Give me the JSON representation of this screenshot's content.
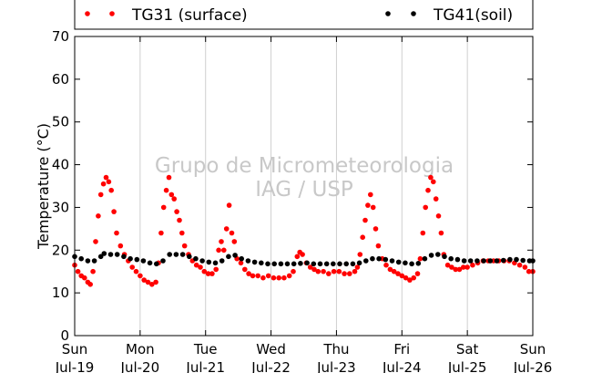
{
  "chart_data": {
    "type": "scatter",
    "ylabel": "Temperature (°C)",
    "xlabel": "",
    "ylim": [
      0,
      70
    ],
    "yticks": [
      0,
      10,
      20,
      30,
      40,
      50,
      60,
      70
    ],
    "xlim": [
      0,
      7
    ],
    "xticks": [
      {
        "x": 0,
        "day": "Sun",
        "date": "Jul-19"
      },
      {
        "x": 1,
        "day": "Mon",
        "date": "Jul-20"
      },
      {
        "x": 2,
        "day": "Tue",
        "date": "Jul-21"
      },
      {
        "x": 3,
        "day": "Wed",
        "date": "Jul-22"
      },
      {
        "x": 4,
        "day": "Thu",
        "date": "Jul-23"
      },
      {
        "x": 5,
        "day": "Fri",
        "date": "Jul-24"
      },
      {
        "x": 6,
        "day": "Sat",
        "date": "Jul-25"
      },
      {
        "x": 7,
        "day": "Sun",
        "date": "Jul-26"
      }
    ],
    "grid": "vertical",
    "legend_position": "top",
    "watermark": [
      "Grupo de Micrometeorologia",
      "IAG / USP"
    ],
    "series": [
      {
        "name": "TG31 (surface)",
        "color": "#ff0000",
        "marker": "dot",
        "points": [
          [
            0.0,
            16.5
          ],
          [
            0.05,
            15.0
          ],
          [
            0.1,
            14.0
          ],
          [
            0.15,
            13.5
          ],
          [
            0.2,
            12.5
          ],
          [
            0.24,
            12.0
          ],
          [
            0.28,
            15.0
          ],
          [
            0.32,
            22.0
          ],
          [
            0.36,
            28.0
          ],
          [
            0.4,
            33.0
          ],
          [
            0.44,
            35.5
          ],
          [
            0.48,
            37.0
          ],
          [
            0.52,
            36.0
          ],
          [
            0.56,
            34.0
          ],
          [
            0.6,
            29.0
          ],
          [
            0.64,
            24.0
          ],
          [
            0.7,
            21.0
          ],
          [
            0.76,
            19.0
          ],
          [
            0.82,
            17.5
          ],
          [
            0.88,
            16.0
          ],
          [
            0.94,
            15.0
          ],
          [
            1.0,
            14.0
          ],
          [
            1.06,
            13.0
          ],
          [
            1.12,
            12.5
          ],
          [
            1.18,
            12.0
          ],
          [
            1.24,
            12.5
          ],
          [
            1.28,
            17.0
          ],
          [
            1.32,
            24.0
          ],
          [
            1.36,
            30.0
          ],
          [
            1.4,
            34.0
          ],
          [
            1.44,
            37.0
          ],
          [
            1.48,
            33.0
          ],
          [
            1.52,
            32.0
          ],
          [
            1.56,
            29.0
          ],
          [
            1.6,
            27.0
          ],
          [
            1.64,
            24.0
          ],
          [
            1.68,
            21.0
          ],
          [
            1.74,
            19.0
          ],
          [
            1.8,
            17.5
          ],
          [
            1.86,
            16.5
          ],
          [
            1.92,
            16.0
          ],
          [
            1.98,
            15.0
          ],
          [
            2.04,
            14.5
          ],
          [
            2.1,
            14.5
          ],
          [
            2.16,
            15.5
          ],
          [
            2.2,
            20.0
          ],
          [
            2.24,
            22.0
          ],
          [
            2.28,
            20.0
          ],
          [
            2.32,
            25.0
          ],
          [
            2.36,
            30.5
          ],
          [
            2.4,
            24.0
          ],
          [
            2.44,
            22.0
          ],
          [
            2.48,
            18.0
          ],
          [
            2.54,
            17.0
          ],
          [
            2.6,
            15.5
          ],
          [
            2.66,
            14.5
          ],
          [
            2.72,
            14.0
          ],
          [
            2.8,
            14.0
          ],
          [
            2.88,
            13.5
          ],
          [
            2.96,
            14.0
          ],
          [
            3.04,
            13.5
          ],
          [
            3.12,
            13.5
          ],
          [
            3.2,
            13.5
          ],
          [
            3.28,
            14.0
          ],
          [
            3.34,
            15.0
          ],
          [
            3.4,
            18.5
          ],
          [
            3.44,
            19.5
          ],
          [
            3.48,
            19.0
          ],
          [
            3.54,
            17.0
          ],
          [
            3.6,
            16.0
          ],
          [
            3.66,
            15.5
          ],
          [
            3.72,
            15.0
          ],
          [
            3.8,
            15.0
          ],
          [
            3.88,
            14.5
          ],
          [
            3.96,
            15.0
          ],
          [
            4.04,
            15.0
          ],
          [
            4.12,
            14.5
          ],
          [
            4.2,
            14.5
          ],
          [
            4.28,
            15.0
          ],
          [
            4.32,
            16.0
          ],
          [
            4.36,
            19.0
          ],
          [
            4.4,
            23.0
          ],
          [
            4.44,
            27.0
          ],
          [
            4.48,
            30.5
          ],
          [
            4.52,
            33.0
          ],
          [
            4.56,
            30.0
          ],
          [
            4.6,
            25.0
          ],
          [
            4.64,
            21.0
          ],
          [
            4.7,
            18.0
          ],
          [
            4.76,
            16.5
          ],
          [
            4.82,
            15.5
          ],
          [
            4.88,
            15.0
          ],
          [
            4.94,
            14.5
          ],
          [
            5.0,
            14.0
          ],
          [
            5.06,
            13.5
          ],
          [
            5.12,
            13.0
          ],
          [
            5.18,
            13.5
          ],
          [
            5.24,
            14.5
          ],
          [
            5.28,
            18.0
          ],
          [
            5.32,
            24.0
          ],
          [
            5.36,
            30.0
          ],
          [
            5.4,
            34.0
          ],
          [
            5.44,
            37.0
          ],
          [
            5.48,
            36.0
          ],
          [
            5.52,
            32.0
          ],
          [
            5.56,
            28.0
          ],
          [
            5.6,
            24.0
          ],
          [
            5.64,
            19.0
          ],
          [
            5.7,
            16.5
          ],
          [
            5.76,
            16.0
          ],
          [
            5.82,
            15.5
          ],
          [
            5.88,
            15.5
          ],
          [
            5.94,
            16.0
          ],
          [
            6.0,
            16.0
          ],
          [
            6.08,
            16.5
          ],
          [
            6.16,
            17.0
          ],
          [
            6.24,
            17.5
          ],
          [
            6.32,
            17.5
          ],
          [
            6.4,
            17.5
          ],
          [
            6.48,
            17.5
          ],
          [
            6.56,
            17.5
          ],
          [
            6.64,
            17.5
          ],
          [
            6.72,
            17.0
          ],
          [
            6.8,
            16.5
          ],
          [
            6.88,
            16.0
          ],
          [
            6.94,
            15.0
          ],
          [
            7.0,
            15.0
          ]
        ]
      },
      {
        "name": "TG41(soil)",
        "color": "#000000",
        "marker": "dot",
        "points": [
          [
            0.0,
            18.5
          ],
          [
            0.1,
            18.0
          ],
          [
            0.2,
            17.5
          ],
          [
            0.3,
            17.5
          ],
          [
            0.4,
            18.5
          ],
          [
            0.45,
            19.2
          ],
          [
            0.55,
            19.0
          ],
          [
            0.65,
            19.0
          ],
          [
            0.75,
            18.5
          ],
          [
            0.85,
            18.0
          ],
          [
            0.95,
            17.8
          ],
          [
            1.05,
            17.5
          ],
          [
            1.15,
            17.0
          ],
          [
            1.25,
            16.8
          ],
          [
            1.35,
            17.5
          ],
          [
            1.45,
            19.0
          ],
          [
            1.55,
            19.0
          ],
          [
            1.65,
            19.0
          ],
          [
            1.75,
            18.5
          ],
          [
            1.85,
            18.0
          ],
          [
            1.95,
            17.5
          ],
          [
            2.05,
            17.2
          ],
          [
            2.15,
            17.0
          ],
          [
            2.25,
            17.5
          ],
          [
            2.35,
            18.5
          ],
          [
            2.45,
            18.8
          ],
          [
            2.55,
            18.0
          ],
          [
            2.65,
            17.5
          ],
          [
            2.75,
            17.2
          ],
          [
            2.85,
            17.0
          ],
          [
            2.95,
            16.8
          ],
          [
            3.05,
            16.8
          ],
          [
            3.15,
            16.8
          ],
          [
            3.25,
            16.8
          ],
          [
            3.35,
            16.8
          ],
          [
            3.45,
            16.9
          ],
          [
            3.55,
            17.0
          ],
          [
            3.65,
            16.8
          ],
          [
            3.75,
            16.8
          ],
          [
            3.85,
            16.8
          ],
          [
            3.95,
            16.8
          ],
          [
            4.05,
            16.8
          ],
          [
            4.15,
            16.8
          ],
          [
            4.25,
            16.8
          ],
          [
            4.35,
            17.0
          ],
          [
            4.45,
            17.5
          ],
          [
            4.55,
            18.0
          ],
          [
            4.65,
            18.0
          ],
          [
            4.75,
            17.8
          ],
          [
            4.85,
            17.5
          ],
          [
            4.95,
            17.2
          ],
          [
            5.05,
            17.0
          ],
          [
            5.15,
            16.8
          ],
          [
            5.25,
            16.9
          ],
          [
            5.35,
            18.0
          ],
          [
            5.45,
            18.8
          ],
          [
            5.55,
            19.0
          ],
          [
            5.65,
            18.5
          ],
          [
            5.75,
            18.0
          ],
          [
            5.85,
            17.8
          ],
          [
            5.95,
            17.5
          ],
          [
            6.05,
            17.5
          ],
          [
            6.15,
            17.5
          ],
          [
            6.25,
            17.5
          ],
          [
            6.35,
            17.5
          ],
          [
            6.45,
            17.5
          ],
          [
            6.55,
            17.6
          ],
          [
            6.65,
            17.8
          ],
          [
            6.75,
            17.8
          ],
          [
            6.85,
            17.6
          ],
          [
            6.95,
            17.5
          ],
          [
            7.0,
            17.5
          ]
        ]
      }
    ]
  }
}
